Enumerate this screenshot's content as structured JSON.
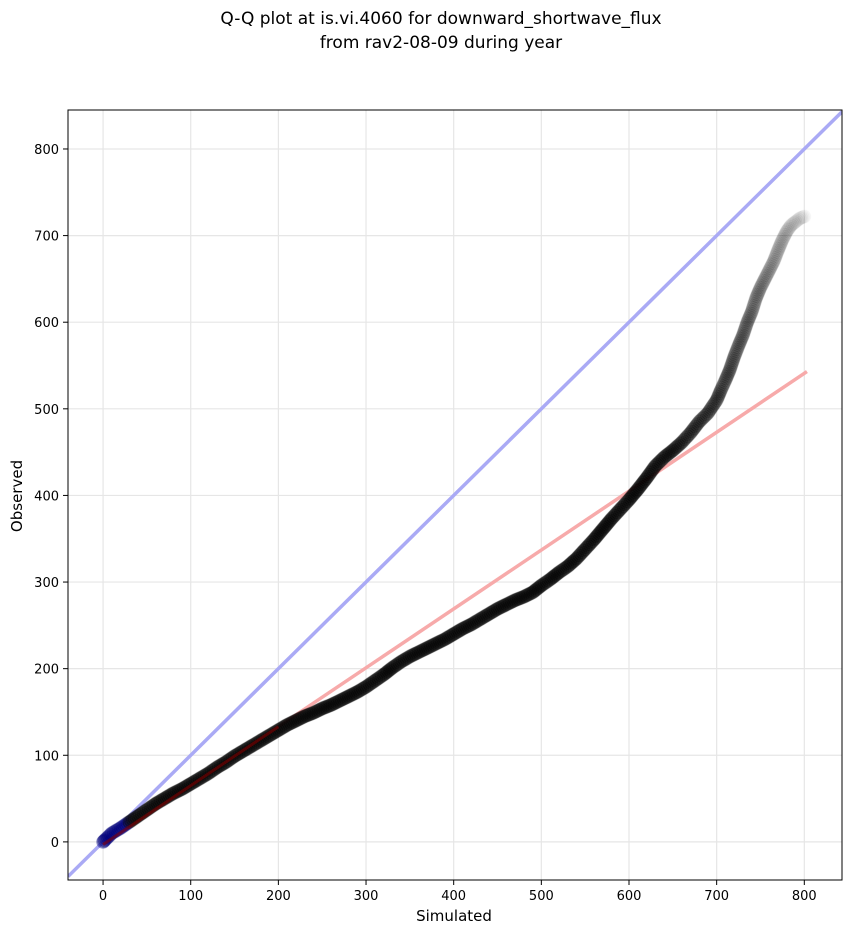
{
  "chart_data": {
    "type": "scatter",
    "title": "Q-Q plot at is.vi.4060 for downward_shortwave_flux",
    "subtitle": "from rav2-08-09 during year",
    "xlabel": "Simulated",
    "ylabel": "Observed",
    "xlim": [
      -40,
      843
    ],
    "ylim": [
      -44,
      845
    ],
    "xticks": [
      0,
      100,
      200,
      300,
      400,
      500,
      600,
      700,
      800
    ],
    "yticks": [
      0,
      100,
      200,
      300,
      400,
      500,
      600,
      700,
      800
    ],
    "grid": true,
    "qq_points": {
      "x": [
        0,
        2,
        5,
        10,
        20,
        30,
        40,
        50,
        60,
        70,
        80,
        90,
        100,
        110,
        120,
        130,
        140,
        150,
        160,
        170,
        180,
        190,
        200,
        210,
        220,
        230,
        240,
        250,
        260,
        270,
        280,
        290,
        300,
        310,
        320,
        330,
        340,
        350,
        360,
        370,
        380,
        390,
        400,
        410,
        420,
        430,
        440,
        450,
        460,
        470,
        480,
        490,
        500,
        510,
        520,
        530,
        540,
        550,
        560,
        570,
        580,
        590,
        600,
        610,
        620,
        630,
        640,
        650,
        660,
        670,
        680,
        690,
        700,
        705,
        710,
        715,
        720,
        725,
        730,
        735,
        740,
        745,
        750,
        755,
        760,
        765,
        770,
        775,
        780,
        785,
        790,
        795,
        800
      ],
      "y": [
        0,
        2,
        5,
        10,
        16,
        23,
        30,
        37,
        44,
        50,
        56,
        61,
        67,
        73,
        79,
        86,
        92,
        99,
        105,
        111,
        117,
        123,
        129,
        135,
        140,
        145,
        149,
        154,
        158,
        163,
        168,
        173,
        179,
        186,
        193,
        201,
        208,
        214,
        219,
        224,
        229,
        234,
        240,
        246,
        251,
        257,
        263,
        269,
        274,
        279,
        283,
        288,
        296,
        303,
        311,
        318,
        327,
        338,
        349,
        361,
        373,
        384,
        395,
        407,
        420,
        434,
        444,
        452,
        461,
        472,
        485,
        495,
        510,
        522,
        533,
        545,
        560,
        573,
        585,
        600,
        612,
        628,
        640,
        650,
        660,
        670,
        683,
        695,
        705,
        712,
        716,
        720,
        722
      ]
    },
    "reference_line": {
      "name": "1:1",
      "color": "#aaaaf5",
      "x": [
        -40,
        843
      ],
      "y": [
        -40,
        843
      ]
    },
    "fit_line": {
      "color": "#f7aaaa",
      "x": [
        0,
        803
      ],
      "y": [
        -3,
        543
      ]
    },
    "colors": {
      "points": "#000000",
      "low_points": "#00007a",
      "fit_overlay": "#8b0000"
    }
  }
}
